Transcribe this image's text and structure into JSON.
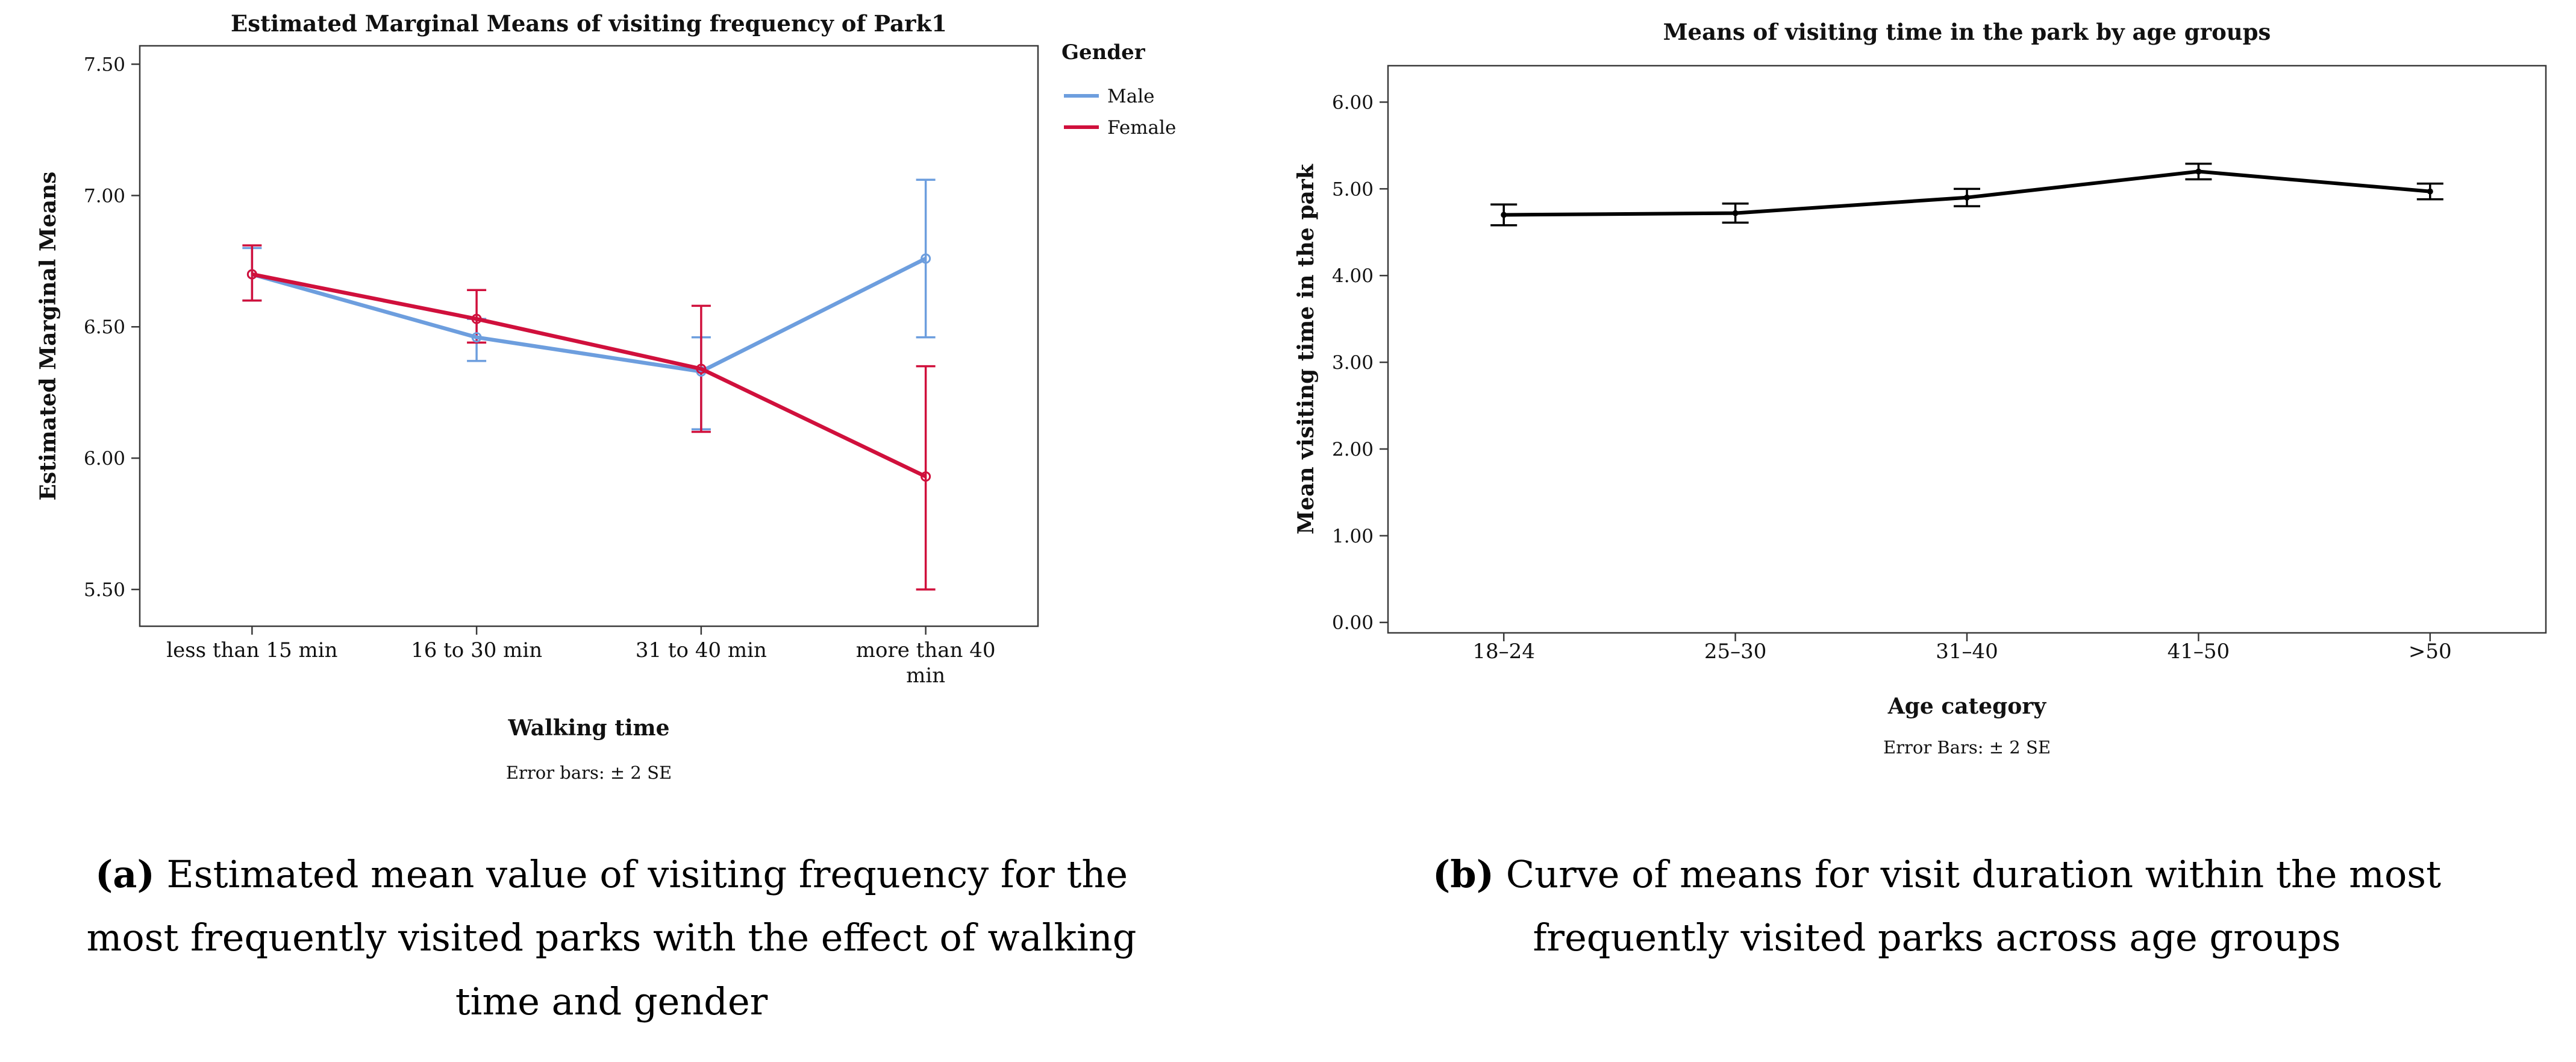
{
  "captions": {
    "a": {
      "label": "(a)",
      "text": " Estimated mean value of visiting frequency for the most frequently visited parks with the effect of walking time and gender"
    },
    "b": {
      "label": "(b)",
      "text": " Curve of means for visit duration within the most frequently visited parks across age groups"
    }
  },
  "chart_data": [
    {
      "type": "line",
      "title": "Estimated Marginal Means of visiting frequency of Park1",
      "xlabel": "Walking time",
      "ylabel": "Estimated Marginal Means",
      "error_note": "Error bars: ± 2 SE",
      "legend_title": "Gender",
      "legend_position": "right",
      "grid": false,
      "categories": [
        "less than 15 min",
        "16 to 30 min",
        "31 to 40 min",
        "more than 40\nmin"
      ],
      "yticks": [
        "5.50",
        "6.00",
        "6.50",
        "7.00",
        "7.50"
      ],
      "ylim": [
        5.36,
        7.57
      ],
      "series": [
        {
          "name": "Male",
          "color": "#6D9EDE",
          "marker": "open",
          "values": [
            6.7,
            6.46,
            6.33,
            6.76
          ],
          "err_low": [
            6.6,
            6.37,
            6.11,
            6.46
          ],
          "err_high": [
            6.8,
            6.53,
            6.46,
            7.06
          ]
        },
        {
          "name": "Female",
          "color": "#D0103C",
          "marker": "open",
          "values": [
            6.7,
            6.53,
            6.34,
            5.93
          ],
          "err_low": [
            6.6,
            6.44,
            6.1,
            5.5
          ],
          "err_high": [
            6.81,
            6.64,
            6.58,
            6.35
          ]
        }
      ]
    },
    {
      "type": "line",
      "title": "Means of visiting time in the park by age groups",
      "xlabel": "Age category",
      "ylabel": "Mean visiting time in the park",
      "error_note": "Error Bars: ± 2 SE",
      "legend_title": null,
      "grid": false,
      "categories": [
        "18–24",
        "25–30",
        "31–40",
        "41–50",
        ">50"
      ],
      "yticks": [
        "0.00",
        "1.00",
        "2.00",
        "3.00",
        "4.00",
        "5.00",
        "6.00"
      ],
      "ylim": [
        -0.12,
        6.42
      ],
      "series": [
        {
          "name": "Mean visiting time",
          "color": "#000000",
          "marker": "dot",
          "values": [
            4.7,
            4.72,
            4.9,
            5.2,
            4.97
          ],
          "err_low": [
            4.58,
            4.61,
            4.8,
            5.11,
            4.88
          ],
          "err_high": [
            4.82,
            4.83,
            5.0,
            5.29,
            5.06
          ]
        }
      ]
    }
  ]
}
